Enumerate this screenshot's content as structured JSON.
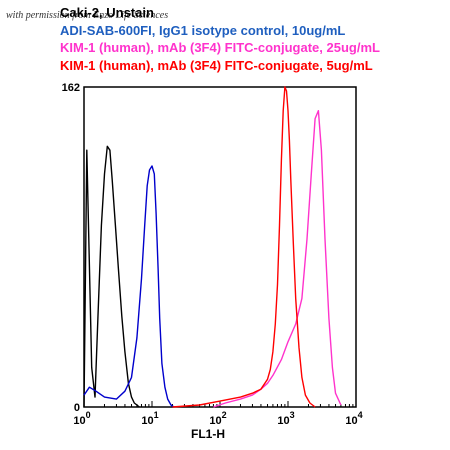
{
  "credit_text": "with permission from Enzo Life Sciences",
  "chart_data": {
    "type": "line",
    "title": "",
    "xlabel": "FL1-H",
    "ylabel": "",
    "x_scale": "log",
    "xlim": [
      1,
      10000
    ],
    "ylim": [
      0,
      162
    ],
    "y_tick_labels": [
      "0",
      "162"
    ],
    "x_tick_labels": [
      {
        "base": "10",
        "exp": "0"
      },
      {
        "base": "10",
        "exp": "1"
      },
      {
        "base": "10",
        "exp": "2"
      },
      {
        "base": "10",
        "exp": "3"
      },
      {
        "base": "10",
        "exp": "4"
      }
    ],
    "legend_position": "top",
    "series": [
      {
        "name": "Caki-2, Unstain",
        "color": "#000000",
        "x": [
          1,
          1.1,
          1.3,
          1.45,
          1.6,
          1.8,
          2.0,
          2.2,
          2.4,
          2.6,
          2.9,
          3.2,
          3.6,
          4.0,
          4.5,
          5.0,
          5.5,
          6.0,
          6.5
        ],
        "y": [
          0,
          130,
          20,
          5,
          45,
          92,
          118,
          132,
          130,
          115,
          92,
          70,
          46,
          28,
          12,
          5,
          2,
          1,
          0
        ]
      },
      {
        "name": "ADI-SAB-600FI, IgG1 isotype control, 10ug/mL",
        "color": "#0000cc",
        "x": [
          1,
          1.2,
          1.5,
          2.0,
          3.0,
          4.0,
          5.0,
          6.0,
          7.0,
          7.8,
          8.5,
          9.2,
          10.0,
          10.8,
          11.5,
          12.3,
          13.0,
          14.0,
          15.5,
          17.0,
          19.0,
          21.0
        ],
        "y": [
          6,
          10,
          8,
          5,
          4,
          8,
          15,
          35,
          65,
          92,
          112,
          120,
          122,
          118,
          98,
          70,
          45,
          22,
          10,
          4,
          1,
          0
        ]
      },
      {
        "name": "KIM-1 (human), mAb (3F4) FITC-conjugate, 25ug/mL",
        "color": "#ff33cc",
        "x": [
          80,
          120,
          200,
          300,
          400,
          500,
          600,
          800,
          1000,
          1300,
          1600,
          1900,
          2200,
          2500,
          2800,
          3100,
          3500,
          4000,
          4500,
          5000,
          6000
        ],
        "y": [
          0,
          2,
          4,
          6,
          9,
          12,
          16,
          24,
          33,
          42,
          55,
          85,
          118,
          146,
          150,
          130,
          85,
          45,
          20,
          7,
          1
        ]
      },
      {
        "name": "KIM-1 (human), mAb (3F4) FITC-conjugate, 5ug/mL",
        "color": "#ff0000",
        "x": [
          20,
          50,
          100,
          200,
          300,
          400,
          500,
          550,
          600,
          650,
          700,
          750,
          800,
          850,
          900,
          950,
          1000,
          1050,
          1100,
          1200,
          1300,
          1450,
          1600,
          1800,
          2100,
          2500
        ],
        "y": [
          0,
          1,
          3,
          5,
          7,
          9,
          14,
          19,
          28,
          42,
          62,
          92,
          125,
          150,
          162,
          160,
          150,
          135,
          115,
          82,
          55,
          30,
          15,
          6,
          2,
          0
        ]
      }
    ]
  }
}
